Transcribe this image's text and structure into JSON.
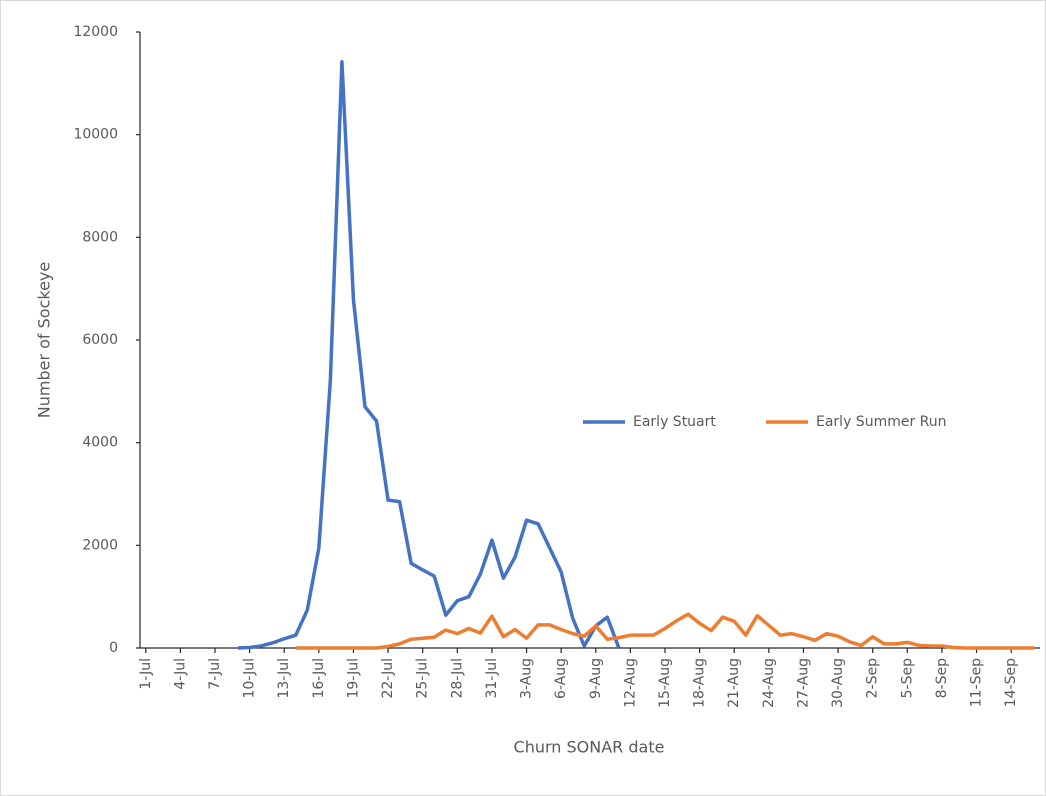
{
  "chart_data": {
    "type": "line",
    "x_label": "Churn SONAR date",
    "y_label": "Number  of Sockeye",
    "categories": [
      "1-Jul",
      null,
      null,
      "4-Jul",
      null,
      null,
      "7-Jul",
      null,
      null,
      "10-Jul",
      null,
      null,
      "13-Jul",
      null,
      null,
      "16-Jul",
      null,
      null,
      "19-Jul",
      null,
      null,
      "22-Jul",
      null,
      null,
      "25-Jul",
      null,
      null,
      "28-Jul",
      null,
      null,
      "31-Jul",
      null,
      null,
      "3-Aug",
      null,
      null,
      "6-Aug",
      null,
      null,
      "9-Aug",
      null,
      null,
      "12-Aug",
      null,
      null,
      "15-Aug",
      null,
      null,
      "18-Aug",
      null,
      null,
      "21-Aug",
      null,
      null,
      "24-Aug",
      null,
      null,
      "27-Aug",
      null,
      null,
      "30-Aug",
      null,
      null,
      "2-Sep",
      null,
      null,
      "5-Sep",
      null,
      null,
      "8-Sep",
      null,
      null,
      "11-Sep",
      null,
      null,
      "14-Sep",
      null,
      null
    ],
    "series": [
      {
        "name": "Early Stuart",
        "color": "#4472c4",
        "values": [
          null,
          null,
          null,
          null,
          null,
          null,
          null,
          null,
          0,
          10,
          40,
          100,
          180,
          250,
          740,
          1950,
          5220,
          11420,
          6780,
          4700,
          4420,
          2880,
          2850,
          1650,
          1520,
          1400,
          640,
          920,
          1000,
          1440,
          2100,
          1360,
          1770,
          2490,
          2420,
          1950,
          1480,
          580,
          40,
          430,
          600,
          0,
          null,
          null,
          null,
          null,
          null,
          null,
          null,
          null,
          null,
          null,
          null,
          null,
          null,
          null,
          null,
          null,
          null,
          null,
          null,
          null,
          null,
          null,
          null,
          null,
          null,
          null,
          null,
          null,
          null,
          null,
          null,
          null,
          null,
          null,
          null,
          null
        ]
      },
      {
        "name": "Early Summer Run",
        "color": "#ed7d31",
        "values": [
          null,
          null,
          null,
          null,
          null,
          null,
          null,
          null,
          null,
          null,
          null,
          null,
          null,
          0,
          0,
          0,
          0,
          0,
          0,
          0,
          0,
          30,
          80,
          170,
          190,
          210,
          350,
          280,
          380,
          290,
          620,
          220,
          360,
          190,
          450,
          450,
          360,
          280,
          230,
          430,
          170,
          200,
          250,
          250,
          250,
          380,
          530,
          660,
          480,
          340,
          600,
          520,
          250,
          630,
          440,
          250,
          280,
          220,
          150,
          280,
          230,
          120,
          50,
          220,
          80,
          80,
          110,
          50,
          40,
          40,
          10,
          0,
          0,
          0,
          0,
          0,
          0,
          0
        ]
      }
    ],
    "ylim": [
      0,
      12000
    ],
    "yticks": [
      0,
      2000,
      4000,
      6000,
      8000,
      10000,
      12000
    ],
    "grid": false
  }
}
